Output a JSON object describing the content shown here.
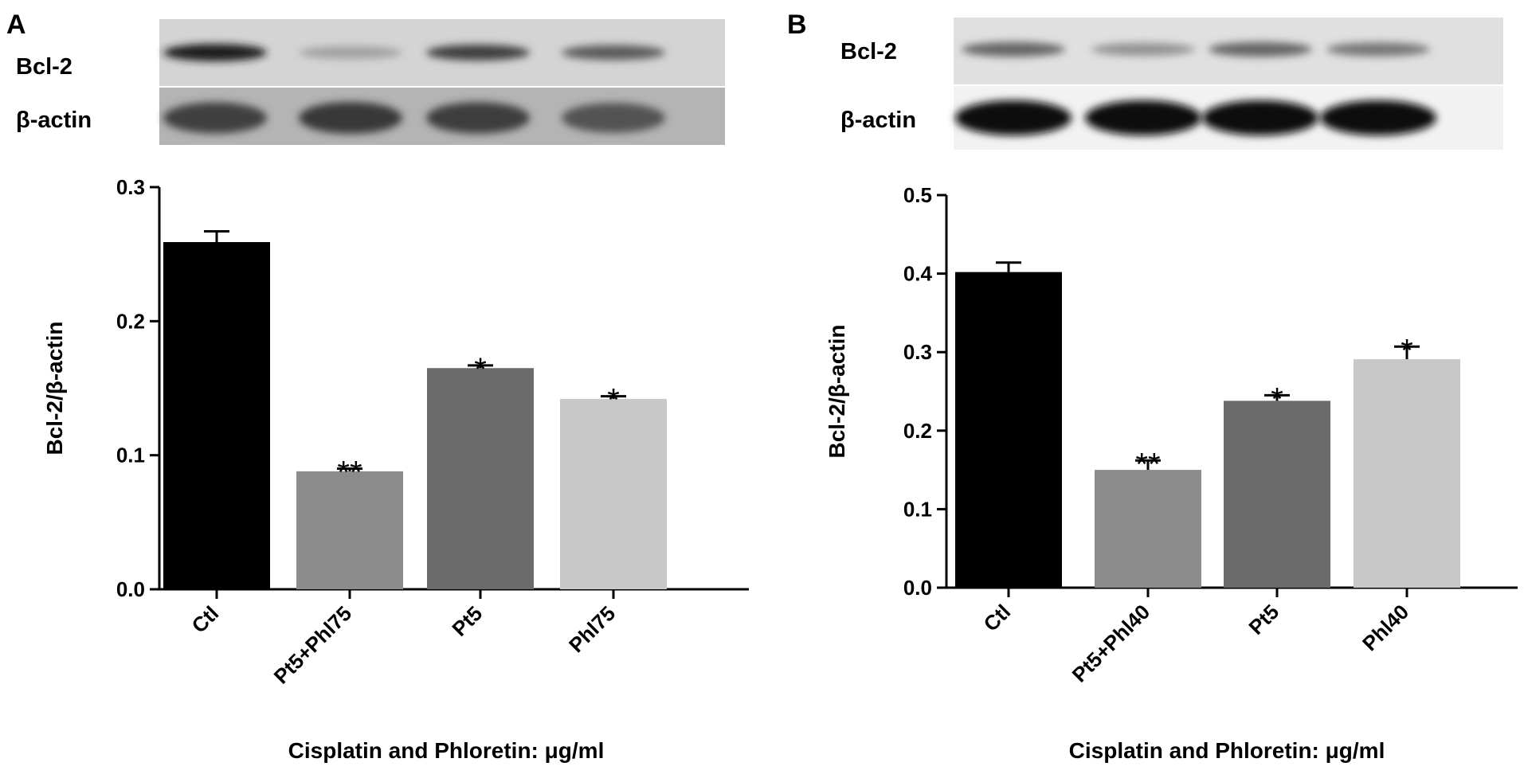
{
  "panels": [
    {
      "letter": "A",
      "blot": {
        "labels": [
          "Bcl-2",
          "β-actin"
        ],
        "bcl2_intensity": [
          0.95,
          0.22,
          0.75,
          0.6
        ],
        "actin_intensity": [
          0.7,
          0.75,
          0.72,
          0.6
        ]
      }
    },
    {
      "letter": "B",
      "blot": {
        "labels": [
          "Bcl-2",
          "β-actin"
        ],
        "bcl2_intensity": [
          0.55,
          0.3,
          0.55,
          0.45
        ],
        "actin_intensity": [
          1.0,
          1.0,
          1.0,
          1.0
        ]
      }
    }
  ],
  "chart_data": [
    {
      "type": "bar",
      "categories": [
        "Ctl",
        "Pt5+Phl75",
        "Pt5",
        "Phl75"
      ],
      "values": [
        0.259,
        0.088,
        0.165,
        0.142
      ],
      "errors": [
        0.008,
        0.002,
        0.002,
        0.002
      ],
      "significance": [
        "",
        "**",
        "*",
        "*"
      ],
      "colors": [
        "#000000",
        "#8c8c8c",
        "#6b6b6b",
        "#c8c8c8"
      ],
      "ylabel": "Bcl-2/β-actin",
      "xlabel": "Cisplatin and Phloretin: μg/ml",
      "ylim": [
        0,
        0.3
      ],
      "yticks": [
        "0.0",
        "0.1",
        "0.2",
        "0.3"
      ],
      "grid": false
    },
    {
      "type": "bar",
      "categories": [
        "Ctl",
        "Pt5+Phl40",
        "Pt5",
        "Phl40"
      ],
      "values": [
        0.402,
        0.15,
        0.238,
        0.291
      ],
      "errors": [
        0.012,
        0.012,
        0.007,
        0.016
      ],
      "significance": [
        "",
        "**",
        "*",
        "*"
      ],
      "colors": [
        "#000000",
        "#8c8c8c",
        "#6b6b6b",
        "#c8c8c8"
      ],
      "ylabel": "Bcl-2/β-actin",
      "xlabel": "Cisplatin and Phloretin: μg/ml",
      "ylim": [
        0,
        0.5
      ],
      "yticks": [
        "0.0",
        "0.1",
        "0.2",
        "0.3",
        "0.4",
        "0.5"
      ],
      "grid": false
    }
  ]
}
